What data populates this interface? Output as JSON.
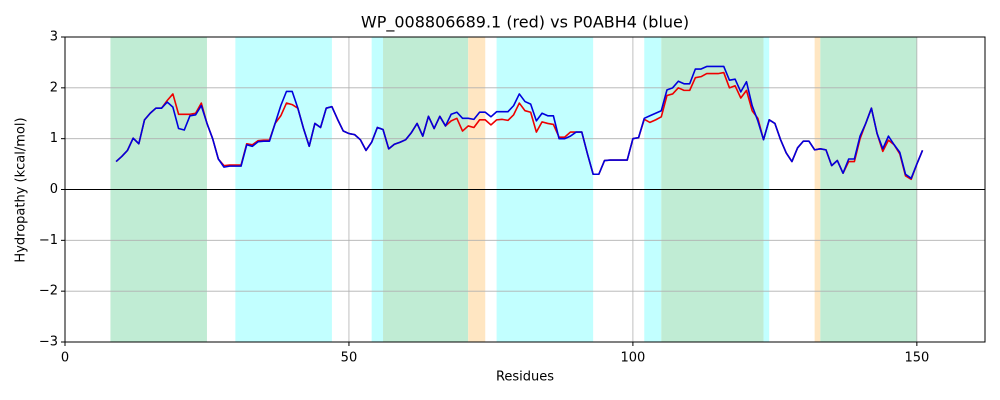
{
  "chart_data": {
    "type": "line",
    "title": "WP_008806689.1 (red) vs P0ABH4 (blue)",
    "xlabel": "Residues",
    "ylabel": "Hydropathy (kcal/mol)",
    "xlim": [
      0,
      162
    ],
    "ylim": [
      -3,
      3
    ],
    "xticks": [
      0,
      50,
      100,
      150
    ],
    "yticks": [
      {
        "value": -3,
        "label": "−3"
      },
      {
        "value": -2,
        "label": "−2"
      },
      {
        "value": -1,
        "label": "−1"
      },
      0,
      1,
      2,
      3
    ],
    "grid": true,
    "hlines": [
      0
    ],
    "regions": [
      {
        "start": 8,
        "end": 25,
        "color": "#c0ecd4"
      },
      {
        "start": 30,
        "end": 47,
        "color": "#c2ffff"
      },
      {
        "start": 54,
        "end": 56,
        "color": "#c2ffff"
      },
      {
        "start": 56,
        "end": 71,
        "color": "#c0ecd4"
      },
      {
        "start": 71,
        "end": 74,
        "color": "#ffe6c2"
      },
      {
        "start": 76,
        "end": 93,
        "color": "#c2ffff"
      },
      {
        "start": 102,
        "end": 105,
        "color": "#c2ffff"
      },
      {
        "start": 105,
        "end": 123,
        "color": "#c0ecd4"
      },
      {
        "start": 123,
        "end": 124,
        "color": "#c2ffff"
      },
      {
        "start": 132,
        "end": 133,
        "color": "#ffe6c2"
      },
      {
        "start": 133,
        "end": 150,
        "color": "#c0ecd4"
      }
    ],
    "x": [
      9,
      10,
      11,
      12,
      13,
      14,
      15,
      16,
      17,
      18,
      19,
      20,
      21,
      22,
      23,
      24,
      25,
      26,
      27,
      28,
      29,
      30,
      31,
      32,
      33,
      34,
      35,
      36,
      37,
      38,
      39,
      40,
      41,
      42,
      43,
      44,
      45,
      46,
      47,
      48,
      49,
      50,
      51,
      52,
      53,
      54,
      55,
      56,
      57,
      58,
      59,
      60,
      61,
      62,
      63,
      64,
      65,
      66,
      67,
      68,
      69,
      70,
      71,
      72,
      73,
      74,
      75,
      76,
      77,
      78,
      79,
      80,
      81,
      82,
      83,
      84,
      85,
      86,
      87,
      88,
      89,
      90,
      91,
      92,
      93,
      94,
      95,
      96,
      97,
      98,
      99,
      100,
      101,
      102,
      103,
      104,
      105,
      106,
      107,
      108,
      109,
      110,
      111,
      112,
      113,
      114,
      115,
      116,
      117,
      118,
      119,
      120,
      121,
      122,
      123,
      124,
      125,
      126,
      127,
      128,
      129,
      130,
      131,
      132,
      133,
      134,
      135,
      136,
      137,
      138,
      139,
      140,
      141,
      142,
      143,
      144,
      145,
      146,
      147,
      148,
      149,
      150,
      151
    ],
    "series": [
      {
        "color": "#ee0000",
        "values": [
          0.55,
          0.65,
          0.77,
          1.01,
          0.9,
          1.37,
          1.5,
          1.6,
          1.6,
          1.75,
          1.88,
          1.48,
          1.48,
          1.48,
          1.5,
          1.7,
          1.3,
          1.0,
          0.6,
          0.47,
          0.48,
          0.48,
          0.48,
          0.9,
          0.88,
          0.96,
          0.97,
          0.97,
          1.3,
          1.45,
          1.7,
          1.67,
          1.6,
          1.2,
          0.85,
          1.3,
          1.22,
          1.6,
          1.63,
          1.38,
          1.15,
          1.1,
          1.08,
          0.98,
          0.77,
          0.93,
          1.22,
          1.18,
          0.8,
          0.89,
          0.93,
          0.98,
          1.12,
          1.3,
          1.05,
          1.44,
          1.2,
          1.44,
          1.25,
          1.35,
          1.4,
          1.15,
          1.25,
          1.22,
          1.37,
          1.37,
          1.27,
          1.37,
          1.38,
          1.36,
          1.47,
          1.7,
          1.55,
          1.52,
          1.13,
          1.33,
          1.3,
          1.28,
          1.03,
          1.03,
          1.13,
          1.13,
          1.13,
          0.7,
          0.3,
          0.3,
          0.57,
          0.58,
          0.58,
          0.58,
          0.58,
          1.0,
          1.02,
          1.38,
          1.32,
          1.37,
          1.43,
          1.85,
          1.88,
          2.0,
          1.95,
          1.95,
          2.2,
          2.22,
          2.28,
          2.28,
          2.28,
          2.3,
          2.0,
          2.04,
          1.8,
          1.95,
          1.55,
          1.4,
          0.98,
          1.37,
          1.3,
          0.98,
          0.72,
          0.55,
          0.82,
          0.95,
          0.95,
          0.78,
          0.8,
          0.78,
          0.47,
          0.57,
          0.32,
          0.55,
          0.55,
          1.0,
          1.3,
          1.6,
          1.1,
          0.75,
          0.97,
          0.88,
          0.7,
          0.27,
          0.2,
          0.5,
          0.77
        ]
      },
      {
        "color": "#0000dd",
        "values": [
          0.55,
          0.65,
          0.77,
          1.01,
          0.9,
          1.37,
          1.5,
          1.6,
          1.6,
          1.72,
          1.62,
          1.2,
          1.17,
          1.45,
          1.47,
          1.65,
          1.3,
          1.0,
          0.6,
          0.44,
          0.46,
          0.46,
          0.46,
          0.88,
          0.85,
          0.94,
          0.95,
          0.95,
          1.3,
          1.65,
          1.93,
          1.93,
          1.6,
          1.2,
          0.85,
          1.3,
          1.22,
          1.6,
          1.63,
          1.38,
          1.15,
          1.1,
          1.08,
          0.98,
          0.77,
          0.93,
          1.22,
          1.18,
          0.8,
          0.89,
          0.93,
          0.98,
          1.12,
          1.3,
          1.05,
          1.44,
          1.2,
          1.44,
          1.25,
          1.48,
          1.52,
          1.4,
          1.4,
          1.38,
          1.52,
          1.52,
          1.43,
          1.53,
          1.53,
          1.53,
          1.65,
          1.88,
          1.73,
          1.68,
          1.35,
          1.5,
          1.45,
          1.45,
          1.0,
          1.0,
          1.05,
          1.13,
          1.13,
          0.7,
          0.3,
          0.3,
          0.57,
          0.58,
          0.58,
          0.58,
          0.58,
          1.0,
          1.02,
          1.4,
          1.45,
          1.5,
          1.55,
          1.96,
          2.0,
          2.13,
          2.08,
          2.08,
          2.37,
          2.37,
          2.42,
          2.42,
          2.42,
          2.42,
          2.15,
          2.17,
          1.92,
          2.12,
          1.65,
          1.35,
          0.98,
          1.37,
          1.3,
          0.98,
          0.72,
          0.55,
          0.82,
          0.95,
          0.95,
          0.78,
          0.8,
          0.78,
          0.47,
          0.57,
          0.32,
          0.6,
          0.6,
          1.05,
          1.3,
          1.6,
          1.1,
          0.8,
          1.05,
          0.88,
          0.73,
          0.3,
          0.22,
          0.5,
          0.77
        ]
      }
    ]
  }
}
